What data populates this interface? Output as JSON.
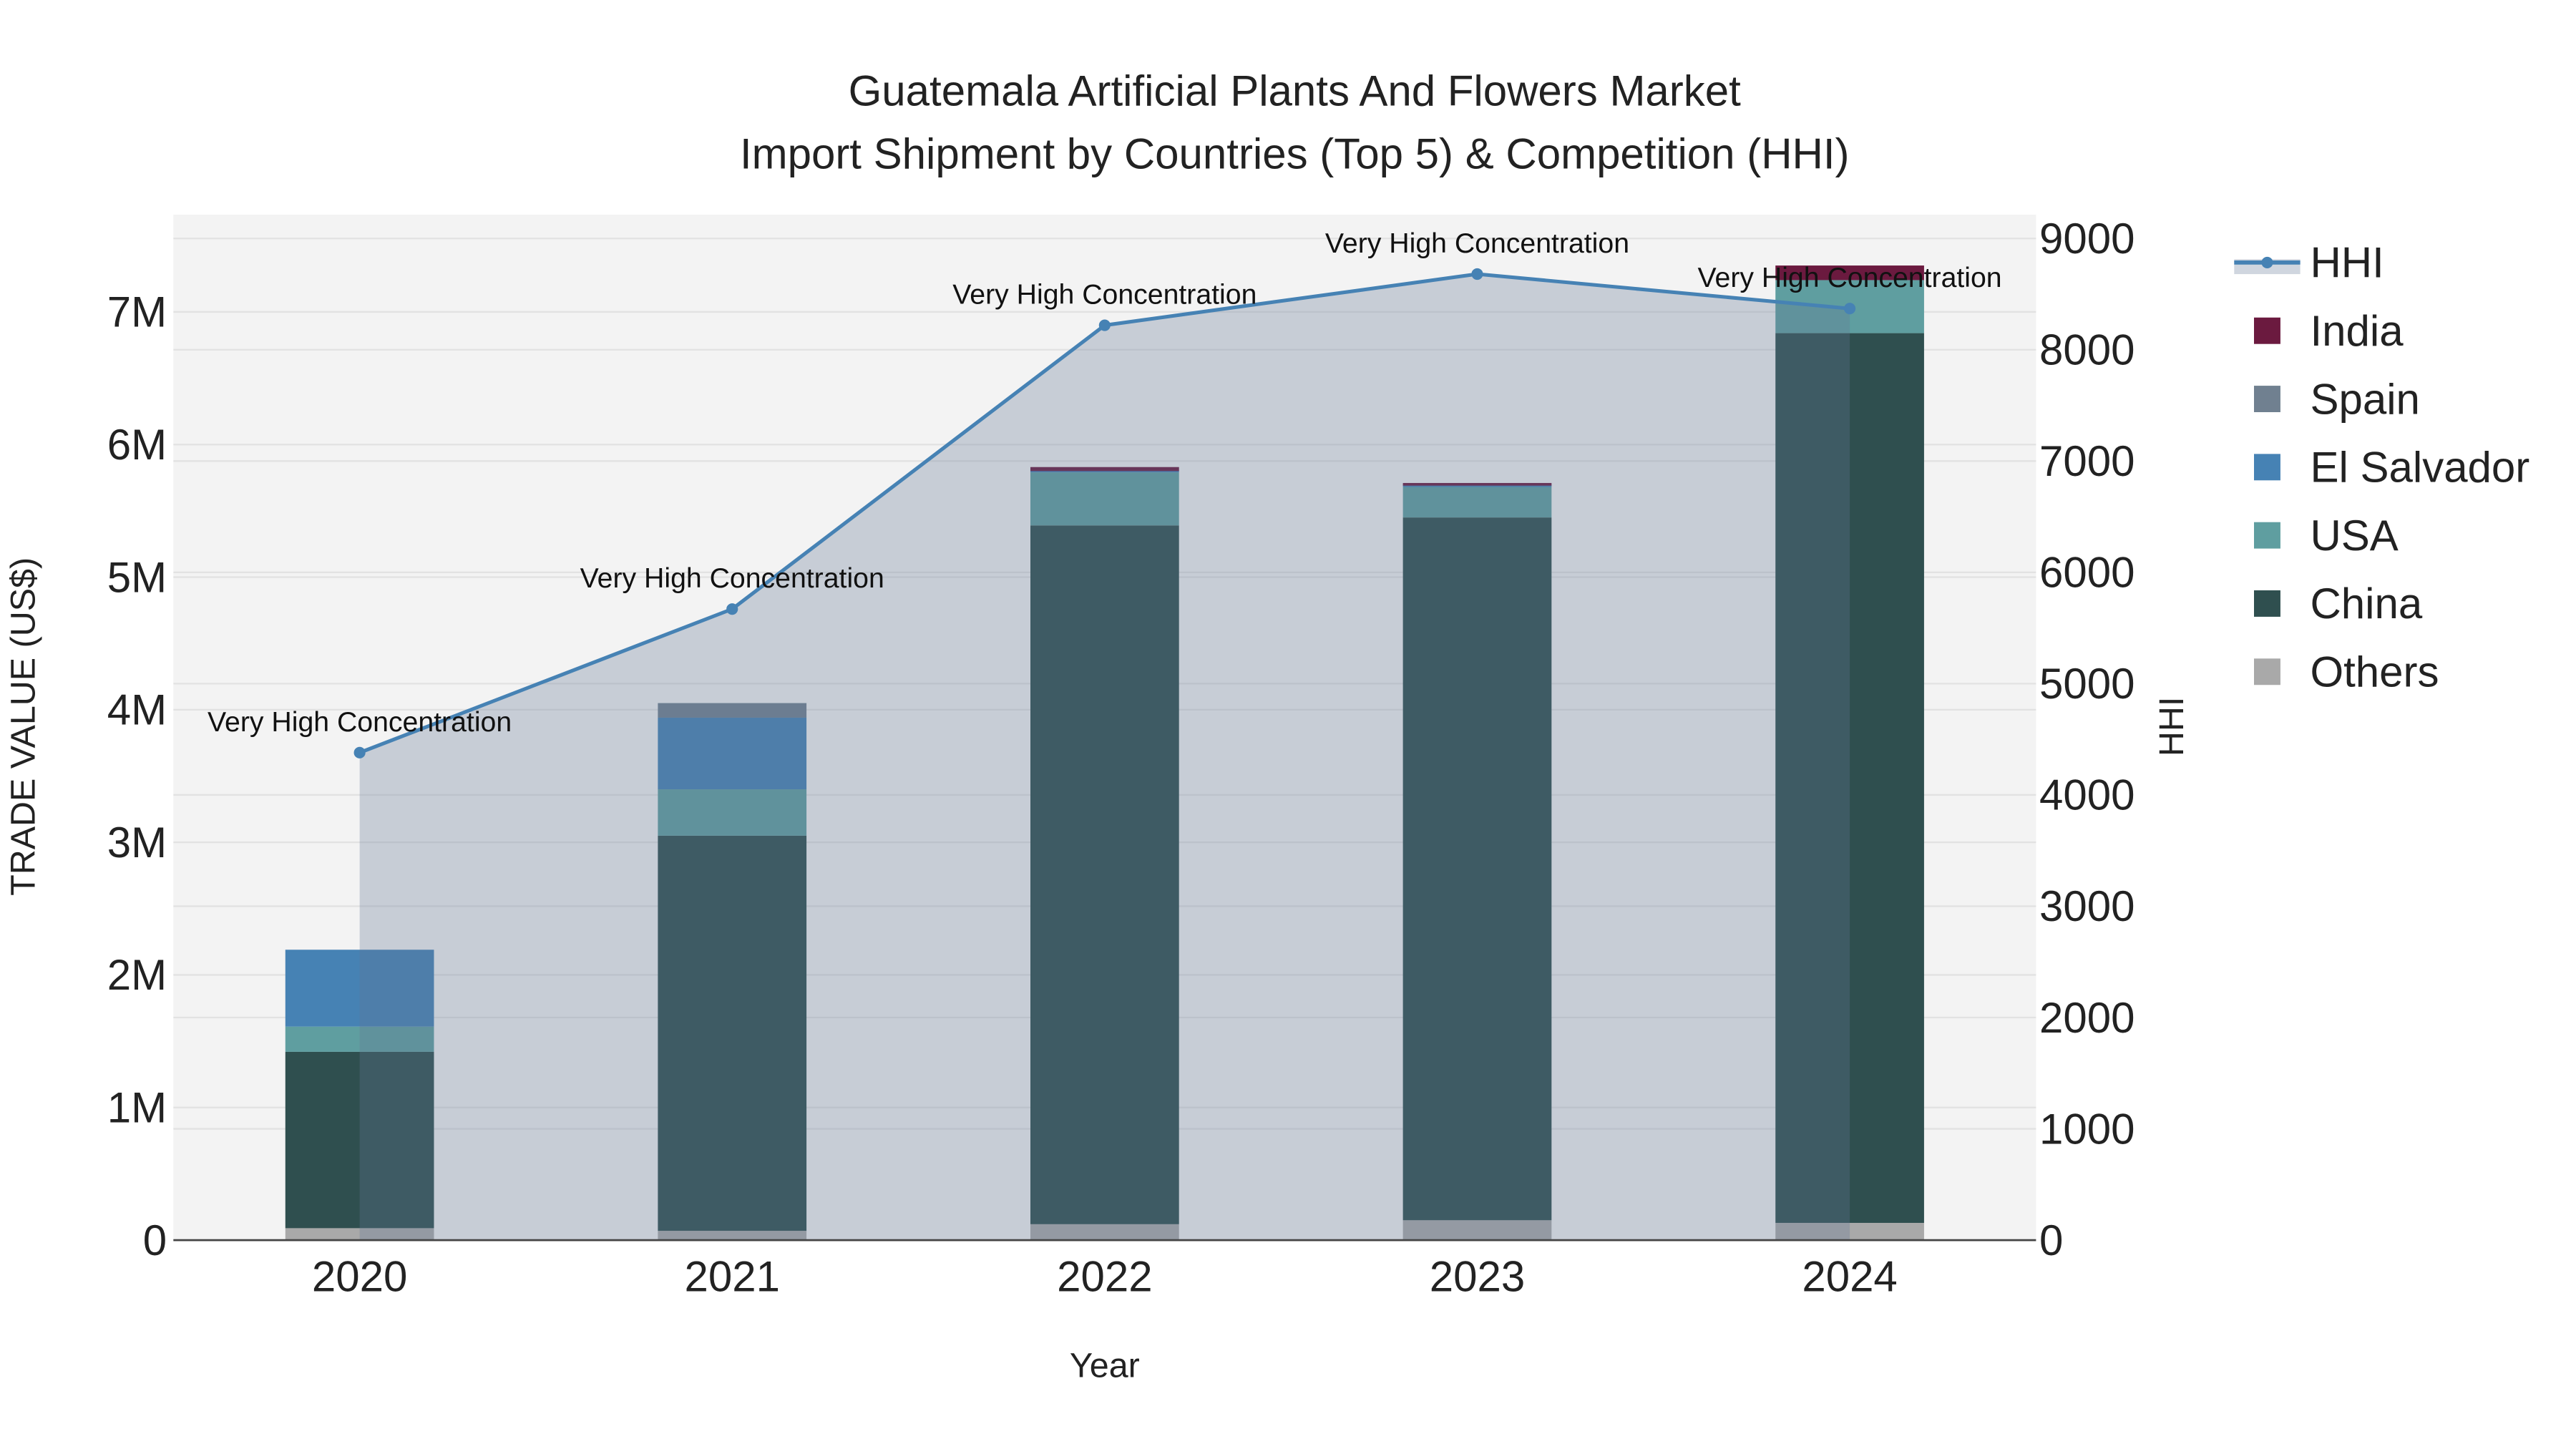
{
  "chart_data": {
    "type": "bar",
    "title_line1": "Guatemala Artificial Plants And Flowers Market",
    "title_line2": "Import Shipment by Countries (Top 5) & Competition (HHI)",
    "xlabel": "Year",
    "ylabel": "TRADE VALUE (US$)",
    "y2label": "HHI",
    "categories": [
      "2020",
      "2021",
      "2022",
      "2023",
      "2024"
    ],
    "ylim": [
      0,
      7600000
    ],
    "y2lim": [
      0,
      9200
    ],
    "yticks": [
      {
        "v": 0,
        "label": "0"
      },
      {
        "v": 1000000,
        "label": "1M"
      },
      {
        "v": 2000000,
        "label": "2M"
      },
      {
        "v": 3000000,
        "label": "3M"
      },
      {
        "v": 4000000,
        "label": "4M"
      },
      {
        "v": 5000000,
        "label": "5M"
      },
      {
        "v": 6000000,
        "label": "6M"
      },
      {
        "v": 7000000,
        "label": "7M"
      }
    ],
    "y2ticks": [
      {
        "v": 0,
        "label": "0"
      },
      {
        "v": 1000,
        "label": "1000"
      },
      {
        "v": 2000,
        "label": "2000"
      },
      {
        "v": 3000,
        "label": "3000"
      },
      {
        "v": 4000,
        "label": "4000"
      },
      {
        "v": 5000,
        "label": "5000"
      },
      {
        "v": 6000,
        "label": "6000"
      },
      {
        "v": 7000,
        "label": "7000"
      },
      {
        "v": 8000,
        "label": "8000"
      },
      {
        "v": 9000,
        "label": "9000"
      }
    ],
    "series": [
      {
        "name": "Others",
        "color": "#A9A9A9",
        "values": [
          90000,
          70000,
          120000,
          150000,
          130000
        ]
      },
      {
        "name": "China",
        "color": "#2F4F4F",
        "values": [
          1330000,
          2980000,
          5270000,
          5300000,
          6710000
        ]
      },
      {
        "name": "USA",
        "color": "#5F9EA0",
        "values": [
          190000,
          350000,
          400000,
          230000,
          400000
        ]
      },
      {
        "name": "El Salvador",
        "color": "#4682B4",
        "values": [
          580000,
          540000,
          10000,
          10000,
          0
        ]
      },
      {
        "name": "Spain",
        "color": "#708090",
        "values": [
          0,
          110000,
          0,
          0,
          0
        ]
      },
      {
        "name": "India",
        "color": "#6B1A3F",
        "values": [
          0,
          0,
          30000,
          20000,
          110000
        ]
      }
    ],
    "hhi": {
      "name": "HHI",
      "color": "#4682B4",
      "values": [
        4380,
        5670,
        8220,
        8680,
        8370
      ],
      "annotations": [
        "Very High Concentration",
        "Very High Concentration",
        "Very High Concentration",
        "Very High Concentration",
        "Very High Concentration"
      ]
    },
    "legend_order": [
      "HHI",
      "India",
      "Spain",
      "El Salvador",
      "USA",
      "China",
      "Others"
    ],
    "legend_position": "right",
    "grid": true
  }
}
